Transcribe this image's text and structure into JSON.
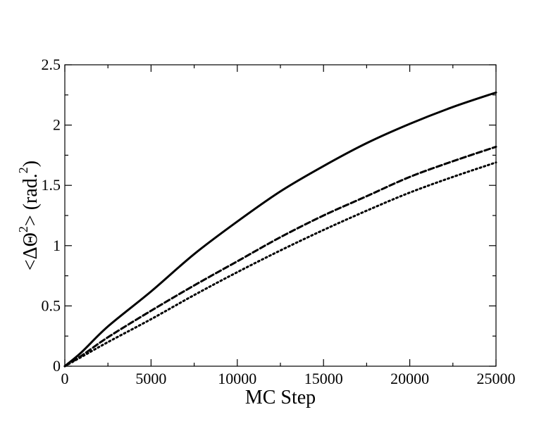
{
  "chart_data": {
    "type": "line",
    "title": "",
    "xlabel": "MC Step",
    "ylabel": {
      "prefix": "<ΔΘ",
      "sup1": "2",
      "mid": "> (rad.",
      "sup2": "2",
      "suffix": ")"
    },
    "xlim": [
      0,
      25000
    ],
    "ylim": [
      0,
      2.5
    ],
    "x_ticks": [
      {
        "value": 0,
        "label": "0"
      },
      {
        "value": 5000,
        "label": "5000"
      },
      {
        "value": 10000,
        "label": "10000"
      },
      {
        "value": 15000,
        "label": "15000"
      },
      {
        "value": 20000,
        "label": "20000"
      },
      {
        "value": 25000,
        "label": "25000"
      }
    ],
    "y_ticks": [
      {
        "value": 0,
        "label": "0"
      },
      {
        "value": 0.5,
        "label": "0.5"
      },
      {
        "value": 1,
        "label": "1"
      },
      {
        "value": 1.5,
        "label": "1.5"
      },
      {
        "value": 2,
        "label": "2"
      },
      {
        "value": 2.5,
        "label": "2.5"
      }
    ],
    "grid": false,
    "legend": "none",
    "x": [
      0,
      1000,
      2500,
      5000,
      7500,
      10000,
      12500,
      15000,
      17500,
      20000,
      22500,
      25000
    ],
    "series": [
      {
        "style": "solid",
        "color": "#000000",
        "values": [
          0,
          0.12,
          0.33,
          0.62,
          0.93,
          1.2,
          1.45,
          1.66,
          1.85,
          2.01,
          2.15,
          2.27
        ]
      },
      {
        "style": "dashed",
        "color": "#000000",
        "values": [
          0,
          0.09,
          0.24,
          0.46,
          0.67,
          0.87,
          1.07,
          1.25,
          1.41,
          1.57,
          1.7,
          1.82
        ]
      },
      {
        "style": "dotted",
        "color": "#000000",
        "values": [
          0,
          0.08,
          0.2,
          0.39,
          0.59,
          0.78,
          0.96,
          1.13,
          1.29,
          1.44,
          1.57,
          1.69
        ]
      }
    ]
  }
}
